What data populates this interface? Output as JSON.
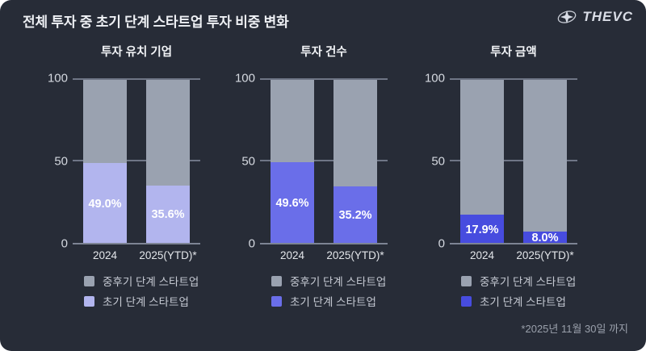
{
  "page": {
    "title": "전체 투자 중 초기 단계 스타트업 투자 비중 변화",
    "logo_text": "THEVC",
    "footnote": "*2025년 11월 30일 까지",
    "background": "#272c37"
  },
  "colors": {
    "late_stage": "#9aa2b0",
    "early_stage": [
      "#b2b5ee",
      "#6a6ee9",
      "#474cdf"
    ],
    "grid_line": "#6f7686",
    "axis_line": "#7d8494",
    "tick_text": "#d5d9e0",
    "category_text": "#e3e6ea",
    "legend_text": "#c6cad3",
    "bar_label_text": "#ffffff",
    "footnote_text": "#9aa0ab",
    "logo_color": "#d9dde6"
  },
  "chart_data": [
    {
      "type": "bar",
      "stacked": true,
      "title": "투자 유치 기업",
      "categories": [
        "2024",
        "2025(YTD)*"
      ],
      "series": [
        {
          "name": "초기 단계 스타트업",
          "values": [
            49.0,
            35.6
          ],
          "data_labels": [
            "49.0%",
            "35.6%"
          ]
        },
        {
          "name": "중후기 단계 스타트업",
          "values": [
            51.0,
            64.4
          ],
          "data_labels": [
            "",
            ""
          ]
        }
      ],
      "ylim": [
        0,
        100
      ],
      "yticks": [
        0,
        50,
        100
      ],
      "grid": true,
      "legend_position": "bottom-left",
      "legend": [
        {
          "label": "중후기 단계 스타트업",
          "color": "#9aa2b0"
        },
        {
          "label": "초기 단계 스타트업",
          "color": "#b2b5ee"
        }
      ]
    },
    {
      "type": "bar",
      "stacked": true,
      "title": "투자 건수",
      "categories": [
        "2024",
        "2025(YTD)*"
      ],
      "series": [
        {
          "name": "초기 단계 스타트업",
          "values": [
            49.6,
            35.2
          ],
          "data_labels": [
            "49.6%",
            "35.2%"
          ]
        },
        {
          "name": "중후기 단계 스타트업",
          "values": [
            50.4,
            64.8
          ],
          "data_labels": [
            "",
            ""
          ]
        }
      ],
      "ylim": [
        0,
        100
      ],
      "yticks": [
        0,
        50,
        100
      ],
      "grid": true,
      "legend_position": "bottom-left",
      "legend": [
        {
          "label": "중후기 단계 스타트업",
          "color": "#9aa2b0"
        },
        {
          "label": "초기 단계 스타트업",
          "color": "#6a6ee9"
        }
      ]
    },
    {
      "type": "bar",
      "stacked": true,
      "title": "투자 금액",
      "categories": [
        "2024",
        "2025(YTD)*"
      ],
      "series": [
        {
          "name": "초기 단계 스타트업",
          "values": [
            17.9,
            8.0
          ],
          "data_labels": [
            "17.9%",
            "8.0%"
          ]
        },
        {
          "name": "중후기 단계 스타트업",
          "values": [
            82.1,
            92.0
          ],
          "data_labels": [
            "",
            ""
          ]
        }
      ],
      "ylim": [
        0,
        100
      ],
      "yticks": [
        0,
        50,
        100
      ],
      "grid": true,
      "legend_position": "bottom-left",
      "legend": [
        {
          "label": "중후기 단계 스타트업",
          "color": "#9aa2b0"
        },
        {
          "label": "초기 단계 스타트업",
          "color": "#474cdf"
        }
      ]
    }
  ]
}
